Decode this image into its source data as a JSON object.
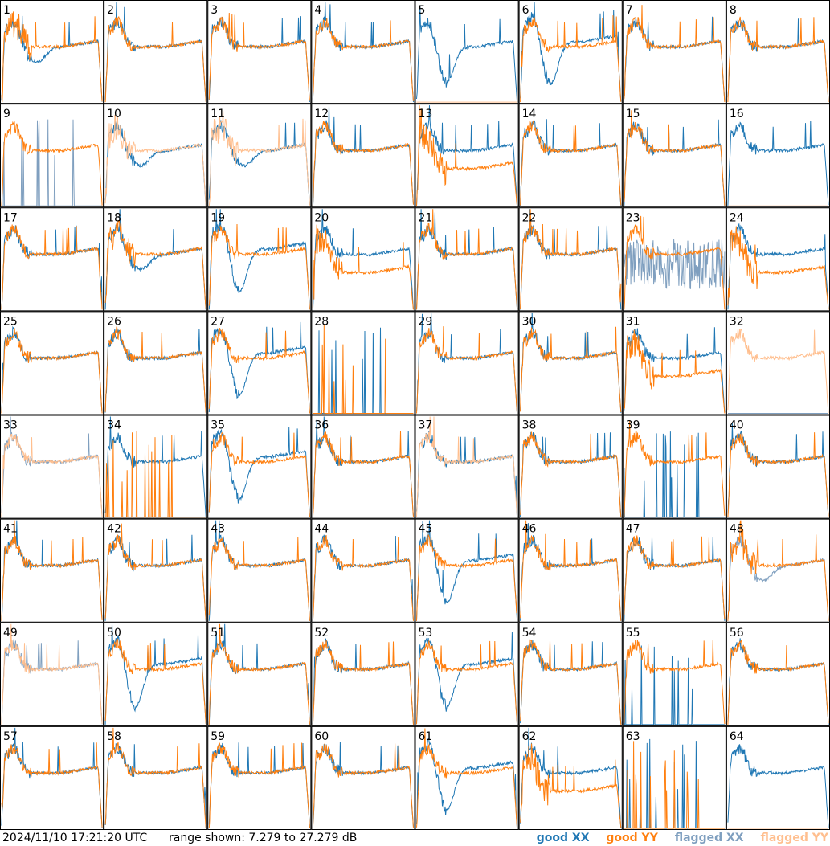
{
  "footer": {
    "timestamp": "2024/11/10 17:21:20 UTC",
    "range_text": "range shown: 7.279 to 27.279 dB"
  },
  "legend": {
    "good_xx": "good XX",
    "good_yy": "good YY",
    "flagged_xx": "flagged XX",
    "flagged_yy": "flagged YY"
  },
  "colors": {
    "good_xx": "#1f77b4",
    "good_yy": "#ff7f0e",
    "flagged_xx": "#7f9fbf",
    "flagged_yy": "#ffbf8f",
    "border": "#000000",
    "background": "#ffffff"
  },
  "chart_data": {
    "type": "line",
    "layout": "grid 8x8 small multiples",
    "range_db": [
      7.279,
      27.279
    ],
    "panels": [
      {
        "n": "1",
        "xx": "good",
        "yy": "good",
        "shape": "dip"
      },
      {
        "n": "2",
        "xx": "good",
        "yy": "good",
        "shape": "normal"
      },
      {
        "n": "3",
        "xx": "good",
        "yy": "good",
        "shape": "normal"
      },
      {
        "n": "4",
        "xx": "good",
        "yy": "good",
        "shape": "normal"
      },
      {
        "n": "5",
        "xx": "good",
        "yy": "flagged",
        "shape": "xxwave",
        "yyflat": true
      },
      {
        "n": "6",
        "xx": "good",
        "yy": "good",
        "shape": "deepdip"
      },
      {
        "n": "7",
        "xx": "good",
        "yy": "good",
        "shape": "normal"
      },
      {
        "n": "8",
        "xx": "good",
        "yy": "good",
        "shape": "normal"
      },
      {
        "n": "9",
        "xx": "flagged",
        "yy": "good",
        "shape": "yyonly",
        "xxspikes": true
      },
      {
        "n": "10",
        "xx": "good",
        "yy": "flagged",
        "shape": "dip"
      },
      {
        "n": "11",
        "xx": "good",
        "yy": "flagged",
        "shape": "dip"
      },
      {
        "n": "12",
        "xx": "good",
        "yy": "good",
        "shape": "normal"
      },
      {
        "n": "13",
        "xx": "good",
        "yy": "good",
        "shape": "yylow"
      },
      {
        "n": "14",
        "xx": "good",
        "yy": "good",
        "shape": "normal"
      },
      {
        "n": "15",
        "xx": "good",
        "yy": "good",
        "shape": "normal"
      },
      {
        "n": "16",
        "xx": "good",
        "yy": "flagged",
        "shape": "xxonly",
        "yyflat": true
      },
      {
        "n": "17",
        "xx": "good",
        "yy": "good",
        "shape": "normal"
      },
      {
        "n": "18",
        "xx": "good",
        "yy": "good",
        "shape": "dip"
      },
      {
        "n": "19",
        "xx": "good",
        "yy": "good",
        "shape": "deepdip"
      },
      {
        "n": "20",
        "xx": "good",
        "yy": "good",
        "shape": "yylow"
      },
      {
        "n": "21",
        "xx": "good",
        "yy": "good",
        "shape": "normal"
      },
      {
        "n": "22",
        "xx": "good",
        "yy": "good",
        "shape": "normal"
      },
      {
        "n": "23",
        "xx": "flagged",
        "yy": "good",
        "shape": "noisy"
      },
      {
        "n": "24",
        "xx": "good",
        "yy": "good",
        "shape": "yylow"
      },
      {
        "n": "25",
        "xx": "good",
        "yy": "good",
        "shape": "normal"
      },
      {
        "n": "26",
        "xx": "good",
        "yy": "good",
        "shape": "normal"
      },
      {
        "n": "27",
        "xx": "good",
        "yy": "good",
        "shape": "deepdip"
      },
      {
        "n": "28",
        "xx": "good",
        "yy": "good",
        "shape": "spikes"
      },
      {
        "n": "29",
        "xx": "good",
        "yy": "good",
        "shape": "normal"
      },
      {
        "n": "30",
        "xx": "good",
        "yy": "good",
        "shape": "normal"
      },
      {
        "n": "31",
        "xx": "good",
        "yy": "good",
        "shape": "yylow"
      },
      {
        "n": "32",
        "xx": "flagged",
        "yy": "flagged",
        "shape": "yyonly",
        "xxflat": true
      },
      {
        "n": "33",
        "xx": "flagged",
        "yy": "flagged",
        "shape": "normal"
      },
      {
        "n": "34",
        "xx": "good",
        "yy": "good",
        "shape": "xxonly",
        "yyspikes": true
      },
      {
        "n": "35",
        "xx": "good",
        "yy": "good",
        "shape": "deepdip"
      },
      {
        "n": "36",
        "xx": "good",
        "yy": "good",
        "shape": "normal"
      },
      {
        "n": "37",
        "xx": "good",
        "yy": "flagged",
        "shape": "normal"
      },
      {
        "n": "38",
        "xx": "good",
        "yy": "good",
        "shape": "normal"
      },
      {
        "n": "39",
        "xx": "good",
        "yy": "good",
        "shape": "yyonly",
        "xxspikes": true
      },
      {
        "n": "40",
        "xx": "good",
        "yy": "good",
        "shape": "normal"
      },
      {
        "n": "41",
        "xx": "good",
        "yy": "good",
        "shape": "normal"
      },
      {
        "n": "42",
        "xx": "good",
        "yy": "good",
        "shape": "normal"
      },
      {
        "n": "43",
        "xx": "good",
        "yy": "good",
        "shape": "normal"
      },
      {
        "n": "44",
        "xx": "good",
        "yy": "good",
        "shape": "normal"
      },
      {
        "n": "45",
        "xx": "good",
        "yy": "good",
        "shape": "deepdip"
      },
      {
        "n": "46",
        "xx": "good",
        "yy": "good",
        "shape": "normal"
      },
      {
        "n": "47",
        "xx": "good",
        "yy": "good",
        "shape": "normal"
      },
      {
        "n": "48",
        "xx": "flagged",
        "yy": "good",
        "shape": "dip"
      },
      {
        "n": "49",
        "xx": "flagged",
        "yy": "flagged",
        "shape": "normal"
      },
      {
        "n": "50",
        "xx": "good",
        "yy": "good",
        "shape": "deepdip"
      },
      {
        "n": "51",
        "xx": "good",
        "yy": "good",
        "shape": "normal"
      },
      {
        "n": "52",
        "xx": "good",
        "yy": "good",
        "shape": "normal"
      },
      {
        "n": "53",
        "xx": "good",
        "yy": "good",
        "shape": "deepdip"
      },
      {
        "n": "54",
        "xx": "good",
        "yy": "good",
        "shape": "normal"
      },
      {
        "n": "55",
        "xx": "good",
        "yy": "good",
        "shape": "yyonly",
        "xxspikes": true
      },
      {
        "n": "56",
        "xx": "good",
        "yy": "good",
        "shape": "normal"
      },
      {
        "n": "57",
        "xx": "good",
        "yy": "good",
        "shape": "normal"
      },
      {
        "n": "58",
        "xx": "good",
        "yy": "good",
        "shape": "normal"
      },
      {
        "n": "59",
        "xx": "good",
        "yy": "good",
        "shape": "normal"
      },
      {
        "n": "60",
        "xx": "good",
        "yy": "good",
        "shape": "normal"
      },
      {
        "n": "61",
        "xx": "good",
        "yy": "good",
        "shape": "deepdip"
      },
      {
        "n": "62",
        "xx": "good",
        "yy": "good",
        "shape": "yylow"
      },
      {
        "n": "63",
        "xx": "good",
        "yy": "good",
        "shape": "spikes"
      },
      {
        "n": "64",
        "xx": "good",
        "yy": "flagged",
        "shape": "xxonly",
        "yyflat": true
      }
    ]
  }
}
